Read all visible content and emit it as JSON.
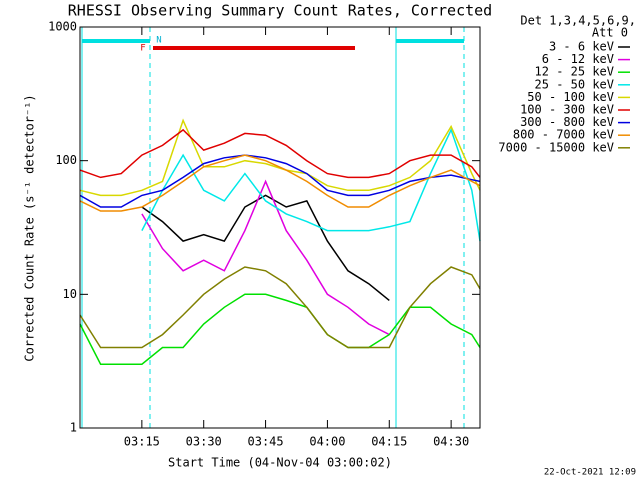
{
  "chart_data": {
    "type": "line",
    "title": "RHESSI Observing Summary Count Rates, Corrected",
    "xlabel": "Start Time (04-Nov-04 03:00:02)",
    "ylabel": "Corrected Count Rate (s⁻¹ detector⁻¹)",
    "header": [
      "Det 1,3,4,5,6,9,",
      "Att 0"
    ],
    "footer": "22-Oct-2021 12:09",
    "annotations": [
      "F",
      "N"
    ],
    "log_y": true,
    "xlim": [
      0,
      97
    ],
    "xticks": [
      {
        "value": 15,
        "label": "03:15"
      },
      {
        "value": 30,
        "label": "03:30"
      },
      {
        "value": 45,
        "label": "03:45"
      },
      {
        "value": 60,
        "label": "04:00"
      },
      {
        "value": 75,
        "label": "04:15"
      },
      {
        "value": 90,
        "label": "04:30"
      }
    ],
    "ylim": [
      1,
      1000
    ],
    "yticks": [
      1,
      10,
      100,
      1000
    ],
    "x": [
      0,
      5,
      10,
      15,
      20,
      25,
      30,
      35,
      40,
      45,
      50,
      55,
      60,
      65,
      70,
      75,
      80,
      85,
      90,
      95,
      97
    ],
    "series": [
      {
        "name": "3 - 6 keV",
        "color": "#000000",
        "values": [
          null,
          null,
          null,
          45,
          35,
          25,
          28,
          25,
          45,
          55,
          45,
          50,
          25,
          15,
          12,
          9,
          null,
          null,
          null,
          null,
          null
        ]
      },
      {
        "name": "6 - 12 keV",
        "color": "#e000e0",
        "values": [
          null,
          null,
          null,
          40,
          22,
          15,
          18,
          15,
          30,
          70,
          30,
          18,
          10,
          8,
          6,
          5,
          null,
          null,
          null,
          null,
          null
        ]
      },
      {
        "name": "12 - 25 keV",
        "color": "#00e000",
        "values": [
          6,
          3,
          3,
          3,
          4,
          4,
          6,
          8,
          10,
          10,
          9,
          8,
          5,
          4,
          4,
          5,
          8,
          8,
          6,
          5,
          4
        ]
      },
      {
        "name": "25 - 50 keV",
        "color": "#00e8e8",
        "values": [
          null,
          null,
          null,
          30,
          60,
          110,
          60,
          50,
          80,
          50,
          40,
          35,
          30,
          30,
          30,
          32,
          35,
          80,
          170,
          60,
          25
        ]
      },
      {
        "name": "50 - 100 keV",
        "color": "#d8d800",
        "values": [
          60,
          55,
          55,
          60,
          70,
          200,
          90,
          90,
          100,
          95,
          85,
          80,
          65,
          60,
          60,
          65,
          75,
          100,
          180,
          80,
          60
        ]
      },
      {
        "name": "100 - 300 keV",
        "color": "#e00000",
        "values": [
          85,
          75,
          80,
          110,
          130,
          170,
          120,
          135,
          160,
          155,
          130,
          100,
          80,
          75,
          75,
          80,
          100,
          110,
          110,
          90,
          75
        ]
      },
      {
        "name": "300 - 800 keV",
        "color": "#0000e0",
        "values": [
          55,
          45,
          45,
          55,
          60,
          75,
          95,
          105,
          110,
          105,
          95,
          80,
          60,
          55,
          55,
          60,
          70,
          75,
          78,
          72,
          70
        ]
      },
      {
        "name": "800 - 7000 keV",
        "color": "#f08c00",
        "values": [
          50,
          42,
          42,
          45,
          55,
          70,
          90,
          100,
          110,
          100,
          85,
          70,
          55,
          45,
          45,
          55,
          65,
          75,
          85,
          70,
          65
        ]
      },
      {
        "name": "7000 - 15000 keV",
        "color": "#808000",
        "values": [
          7,
          4,
          4,
          4,
          5,
          7,
          10,
          13,
          16,
          15,
          12,
          8,
          5,
          4,
          4,
          4,
          8,
          12,
          16,
          14,
          11
        ]
      }
    ]
  }
}
